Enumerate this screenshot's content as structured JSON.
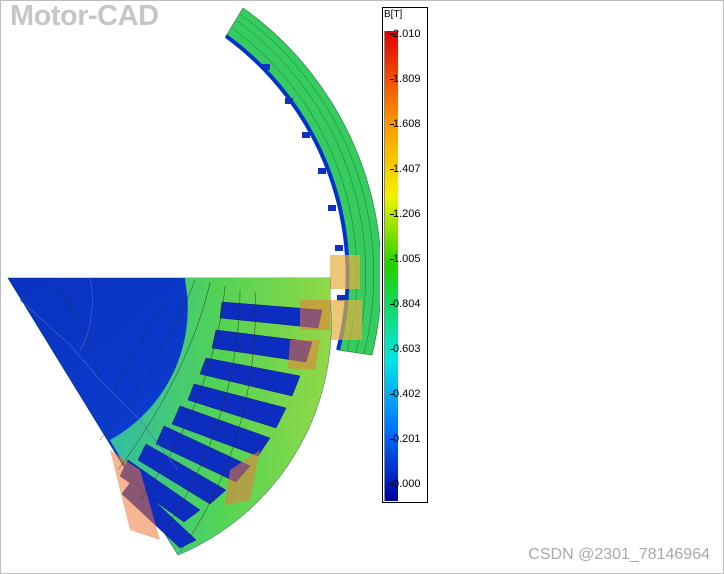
{
  "app": {
    "title": "Motor-CAD"
  },
  "legend": {
    "unit_label": "B[T]",
    "ticks": [
      "2.010",
      "1.809",
      "1.608",
      "1.407",
      "1.206",
      "1.005",
      "0.804",
      "0.603",
      "0.402",
      "0.201",
      "0.000"
    ],
    "colors": {
      "top": "#e00000",
      "orange": "#ff9a00",
      "yellow": "#f2f200",
      "green": "#22d100",
      "cyan": "#00e6e6",
      "blue": "#0070ff",
      "bottom": "#0000a0"
    }
  },
  "plot": {
    "rotor_color": "#0a36c8",
    "stator_color": "#3ad650",
    "slot_color": "#0d28b8"
  },
  "footer": {
    "watermark": "CSDN @2301_78146964"
  }
}
